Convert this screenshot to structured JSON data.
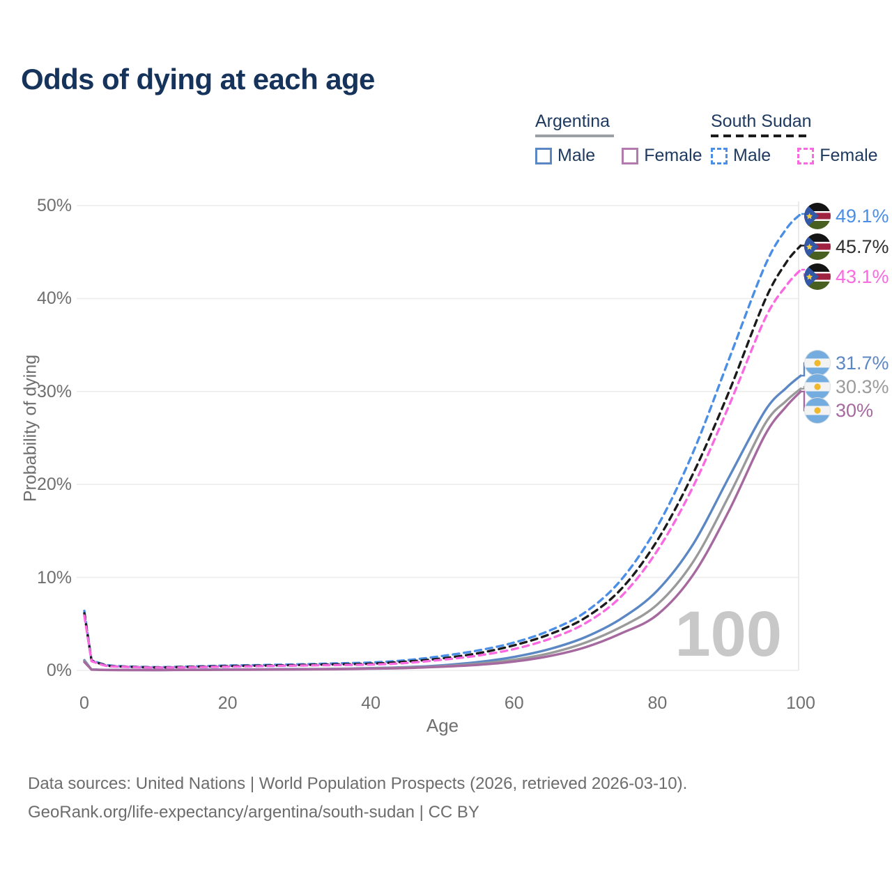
{
  "header": {
    "title": "Odds of dying at each age"
  },
  "legend": {
    "groups": [
      {
        "name": "Argentina",
        "line_style": "solid",
        "underline_color": "#9aa0a6",
        "items": [
          {
            "label": "Male",
            "color": "#5b87c5",
            "dashed": false
          },
          {
            "label": "Female",
            "color": "#b279ae",
            "dashed": false
          }
        ]
      },
      {
        "name": "South Sudan",
        "line_style": "dashed",
        "underline_color": "#1c1c1c",
        "items": [
          {
            "label": "Male",
            "color": "#4a8ee6",
            "dashed": true
          },
          {
            "label": "Female",
            "color": "#f96ae1",
            "dashed": true
          }
        ]
      }
    ]
  },
  "chart_data": {
    "type": "line",
    "title": "Odds of dying at each age",
    "xlabel": "Age",
    "ylabel": "Probability of dying",
    "xlim": [
      0,
      100
    ],
    "ylim": [
      0,
      50
    ],
    "grid": "horizontal",
    "legend_position": "top-right",
    "hover_age_watermark": "100",
    "x_ticks": [
      {
        "value": 0,
        "label": "0"
      },
      {
        "value": 20,
        "label": "20"
      },
      {
        "value": 40,
        "label": "40"
      },
      {
        "value": 60,
        "label": "60"
      },
      {
        "value": 80,
        "label": "80"
      },
      {
        "value": 100,
        "label": "100"
      }
    ],
    "y_ticks": [
      {
        "value": 0,
        "label": "0%"
      },
      {
        "value": 10,
        "label": "10%"
      },
      {
        "value": 20,
        "label": "20%"
      },
      {
        "value": 30,
        "label": "30%"
      },
      {
        "value": 40,
        "label": "40%"
      },
      {
        "value": 50,
        "label": "50%"
      }
    ],
    "ages": [
      0,
      1,
      3,
      5,
      10,
      15,
      20,
      25,
      30,
      35,
      40,
      45,
      50,
      55,
      60,
      65,
      70,
      75,
      80,
      85,
      90,
      95,
      98,
      100
    ],
    "series": [
      {
        "name": "South Sudan Male",
        "country": "South Sudan",
        "sex": "Male",
        "color": "#4a8ee6",
        "dashed": true,
        "end_label": "49.1%",
        "label_color": "#4a8ee6",
        "flag": "south-sudan",
        "values": [
          6.4,
          1.1,
          0.6,
          0.45,
          0.35,
          0.42,
          0.52,
          0.58,
          0.65,
          0.75,
          0.85,
          1.1,
          1.55,
          2.15,
          3.0,
          4.3,
          6.3,
          9.8,
          15.5,
          23.5,
          33.5,
          43.5,
          47.5,
          49.1
        ]
      },
      {
        "name": "South Sudan Both sexes",
        "country": "South Sudan",
        "sex": "Both",
        "color": "#1b1b1b",
        "dashed": true,
        "end_label": "45.7%",
        "label_color": "#2f2f2f",
        "flag": "south-sudan",
        "values": [
          6.15,
          1.05,
          0.55,
          0.42,
          0.32,
          0.38,
          0.46,
          0.52,
          0.58,
          0.65,
          0.72,
          0.95,
          1.3,
          1.85,
          2.7,
          3.9,
          5.7,
          8.8,
          14.0,
          21.2,
          30.0,
          39.8,
          43.9,
          45.7
        ]
      },
      {
        "name": "South Sudan Female",
        "country": "South Sudan",
        "sex": "Female",
        "color": "#f96ae1",
        "dashed": true,
        "end_label": "43.1%",
        "label_color": "#f96ae1",
        "flag": "south-sudan",
        "values": [
          5.9,
          1.0,
          0.5,
          0.4,
          0.3,
          0.34,
          0.4,
          0.46,
          0.52,
          0.57,
          0.62,
          0.8,
          1.15,
          1.6,
          2.3,
          3.4,
          5.1,
          8.0,
          12.9,
          19.8,
          28.5,
          37.8,
          41.4,
          43.1
        ]
      },
      {
        "name": "Argentina Male",
        "country": "Argentina",
        "sex": "Male",
        "color": "#5b87c5",
        "dashed": false,
        "end_label": "31.7%",
        "label_color": "#5b87c5",
        "flag": "argentina",
        "values": [
          1.1,
          0.1,
          0.06,
          0.05,
          0.04,
          0.07,
          0.1,
          0.12,
          0.14,
          0.17,
          0.25,
          0.35,
          0.55,
          0.9,
          1.45,
          2.3,
          3.6,
          5.6,
          8.6,
          13.6,
          20.8,
          27.9,
          30.4,
          31.7
        ]
      },
      {
        "name": "Argentina Both sexes",
        "country": "Argentina",
        "sex": "Both",
        "color": "#9a9a9a",
        "dashed": false,
        "end_label": "30.3%",
        "label_color": "#9b9b9b",
        "flag": "argentina",
        "values": [
          1.0,
          0.09,
          0.05,
          0.045,
          0.04,
          0.06,
          0.08,
          0.1,
          0.12,
          0.15,
          0.22,
          0.3,
          0.46,
          0.72,
          1.15,
          1.85,
          3.0,
          4.7,
          7.1,
          11.7,
          18.8,
          26.5,
          29.0,
          30.3
        ]
      },
      {
        "name": "Argentina Female",
        "country": "Argentina",
        "sex": "Female",
        "color": "#a5689f",
        "dashed": false,
        "end_label": "30%",
        "label_color": "#a5689f",
        "flag": "argentina",
        "values": [
          0.9,
          0.08,
          0.045,
          0.04,
          0.035,
          0.05,
          0.07,
          0.08,
          0.1,
          0.12,
          0.18,
          0.25,
          0.4,
          0.6,
          0.95,
          1.55,
          2.5,
          4.0,
          6.0,
          10.3,
          17.2,
          25.3,
          28.4,
          30.0
        ]
      }
    ]
  },
  "footer": {
    "line1": "Data sources: United Nations | World Population Prospects (2026, retrieved 2026-03-10).",
    "line2": "GeoRank.org/life-expectancy/argentina/south-sudan | CC BY"
  }
}
